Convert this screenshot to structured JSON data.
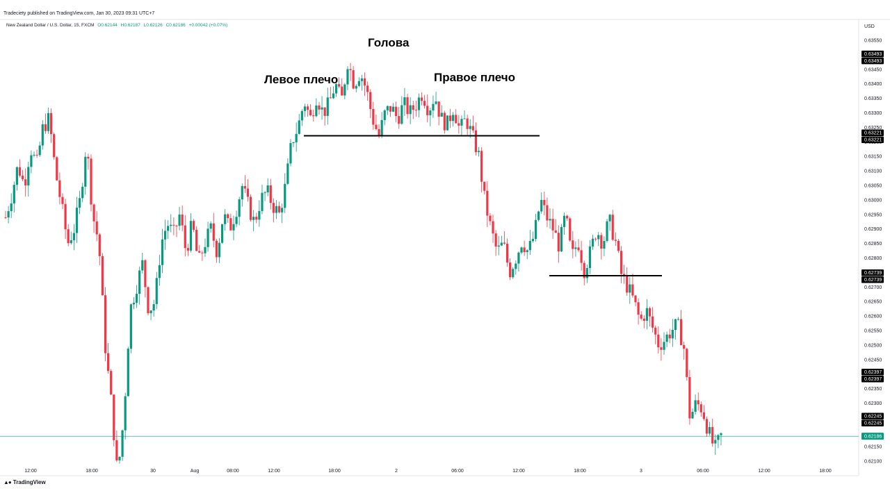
{
  "publisher_line": "Tradeciety published on TradingView.com, Jan 30, 2023 09:31 UTC+7",
  "legend": {
    "symbol": "New Zealand Dollar / U.S. Dollar, 15, FXCM",
    "open": "O0.62144",
    "high": "H0.62187",
    "low": "L0.62126",
    "close": "C0.62186",
    "change": "+0.00042 (+0.07%)"
  },
  "brand": "TradingView",
  "colors": {
    "up": "#089981",
    "down": "#F23645",
    "price_line": "#089981",
    "label_bg": "#000000"
  },
  "chart_data": {
    "type": "candlestick",
    "currency": "USD",
    "timeframe": "15",
    "ylim": [
      0.6208,
      0.6356
    ],
    "y_ticks": [
      "0.63550",
      "0.63450",
      "0.63400",
      "0.63350",
      "0.63300",
      "0.63250",
      "0.63200",
      "0.63150",
      "0.63100",
      "0.63050",
      "0.63000",
      "0.62950",
      "0.62900",
      "0.62850",
      "0.62800",
      "0.62750",
      "0.62700",
      "0.62650",
      "0.62600",
      "0.62550",
      "0.62500",
      "0.62450",
      "0.62350",
      "0.62300",
      "0.62150",
      "0.62100"
    ],
    "x_ticks": [
      "12:00",
      "18:00",
      "30",
      "Aug",
      "08:00",
      "12:00",
      "18:00",
      "2",
      "06:00",
      "12:00",
      "18:00",
      "3",
      "06:00",
      "12:00",
      "18:00"
    ],
    "price_labels": [
      "0.63493",
      "0.63493",
      "0.63221",
      "0.63221",
      "0.62739",
      "0.62739",
      "0.62397",
      "0.62397",
      "0.62245",
      "0.62245"
    ],
    "current_price": "0.62186",
    "annotations": [
      "Голова",
      "Левое плечо",
      "Правое плечо"
    ],
    "neckline_upper": 0.63221,
    "neckline_lower": 0.62739,
    "ohlc_path": [
      0.6294,
      0.6302,
      0.6312,
      0.6305,
      0.6318,
      0.6312,
      0.6325,
      0.6328,
      0.631,
      0.6298,
      0.6285,
      0.629,
      0.63,
      0.632,
      0.6295,
      0.6285,
      0.625,
      0.623,
      0.6205,
      0.6225,
      0.6262,
      0.627,
      0.6278,
      0.6262,
      0.6265,
      0.6285,
      0.6292,
      0.6288,
      0.6295,
      0.6282,
      0.6292,
      0.6278,
      0.6285,
      0.629,
      0.6282,
      0.6295,
      0.629,
      0.6296,
      0.6305,
      0.6298,
      0.6292,
      0.63,
      0.6303,
      0.6298,
      0.6295,
      0.6305,
      0.632,
      0.6325,
      0.6334,
      0.6328,
      0.6336,
      0.633,
      0.6333,
      0.634,
      0.6334,
      0.6348,
      0.634,
      0.6344,
      0.6338,
      0.6328,
      0.6322,
      0.633,
      0.6332,
      0.6328,
      0.6333,
      0.633,
      0.6333,
      0.6337,
      0.6331,
      0.6336,
      0.6328,
      0.6326,
      0.6332,
      0.6324,
      0.6328,
      0.6322,
      0.6316,
      0.63,
      0.629,
      0.6282,
      0.6285,
      0.6275,
      0.628,
      0.6286,
      0.6282,
      0.6288,
      0.63,
      0.6294,
      0.629,
      0.6284,
      0.6295,
      0.628,
      0.6286,
      0.6276,
      0.6282,
      0.629,
      0.6285,
      0.6293,
      0.6286,
      0.6274,
      0.627,
      0.6265,
      0.6258,
      0.6262,
      0.6256,
      0.625,
      0.6252,
      0.6255,
      0.6257,
      0.625,
      0.6225,
      0.623,
      0.6228,
      0.622,
      0.6214,
      0.62186
    ]
  }
}
